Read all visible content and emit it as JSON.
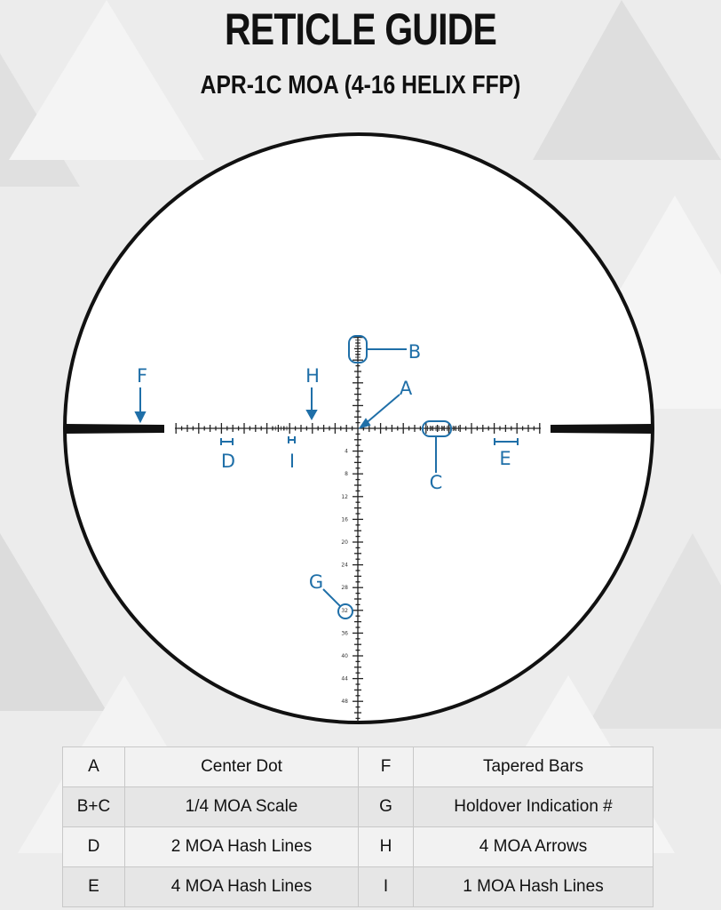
{
  "header": {
    "title": "RETICLE GUIDE",
    "subtitle": "APR-1C MOA (4-16 HELIX FFP)"
  },
  "reticle": {
    "accent_color": "#1f6fa8",
    "holdover_numbers": [
      "4",
      "8",
      "12",
      "16",
      "20",
      "24",
      "28",
      "32",
      "36",
      "40",
      "44",
      "48"
    ],
    "callouts": {
      "A": "A",
      "B": "B",
      "C": "C",
      "D": "D",
      "E": "E",
      "F": "F",
      "G": "G",
      "H": "H",
      "I": "I"
    }
  },
  "legend": {
    "rows": [
      {
        "key": "A",
        "label": "Center Dot",
        "key2": "F",
        "label2": "Tapered Bars"
      },
      {
        "key": "B+C",
        "label": "1/4 MOA Scale",
        "key2": "G",
        "label2": "Holdover Indication #"
      },
      {
        "key": "D",
        "label": "2 MOA Hash Lines",
        "key2": "H",
        "label2": "4 MOA Arrows"
      },
      {
        "key": "E",
        "label": "4 MOA Hash Lines",
        "key2": "I",
        "label2": "1 MOA Hash Lines"
      }
    ]
  }
}
